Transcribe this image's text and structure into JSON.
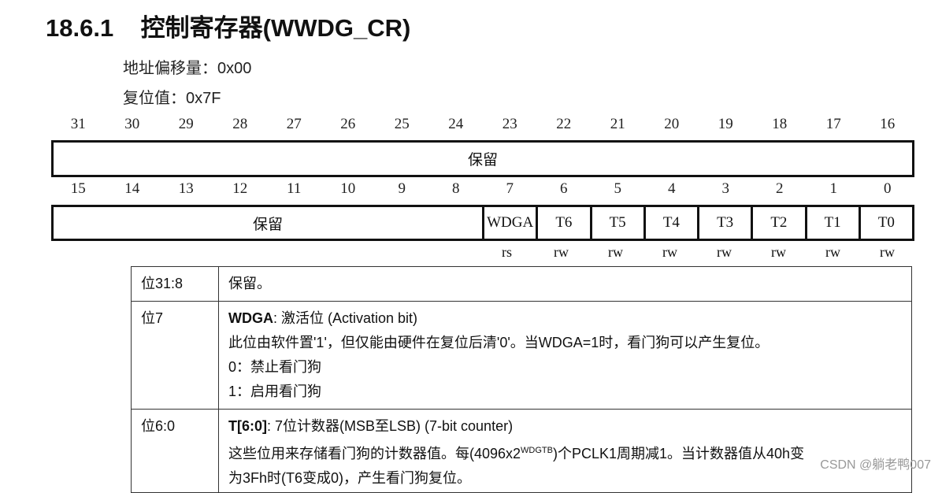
{
  "title": "18.6.1    控制寄存器(WWDG_CR)",
  "offset": "地址偏移量：0x00",
  "reset": "复位值：0x7F",
  "bits_high": [
    "31",
    "30",
    "29",
    "28",
    "27",
    "26",
    "25",
    "24",
    "23",
    "22",
    "21",
    "20",
    "19",
    "18",
    "17",
    "16"
  ],
  "bits_low": [
    "15",
    "14",
    "13",
    "12",
    "11",
    "10",
    "9",
    "8",
    "7",
    "6",
    "5",
    "4",
    "3",
    "2",
    "1",
    "0"
  ],
  "reserved_high": "保留",
  "reserved_low": "保留",
  "fields": [
    "WDGA",
    "T6",
    "T5",
    "T4",
    "T3",
    "T2",
    "T1",
    "T0"
  ],
  "access": [
    "rs",
    "rw",
    "rw",
    "rw",
    "rw",
    "rw",
    "rw",
    "rw"
  ],
  "rows": [
    {
      "bits": "位31:8",
      "desc": "保留。"
    },
    {
      "bits": "位7",
      "name": "WDGA",
      "title": ": 激活位 (Activation bit)",
      "lines": [
        "此位由软件置'1'，但仅能由硬件在复位后清'0'。当WDGA=1时，看门狗可以产生复位。",
        "0：禁止看门狗",
        "1：启用看门狗"
      ]
    },
    {
      "bits": "位6:0",
      "name": "T[6:0]",
      "title": ": 7位计数器(MSB至LSB) (7-bit counter)",
      "l1a": "这些位用来存储看门狗的计数器值。每(4096x2",
      "sup": "WDGTB",
      "l1b": ")个PCLK1周期减1。当计数器值从40h变",
      "l2": "为3Fh时(T6变成0)，产生看门狗复位。"
    }
  ],
  "watermark": "CSDN @躺老鸭007"
}
